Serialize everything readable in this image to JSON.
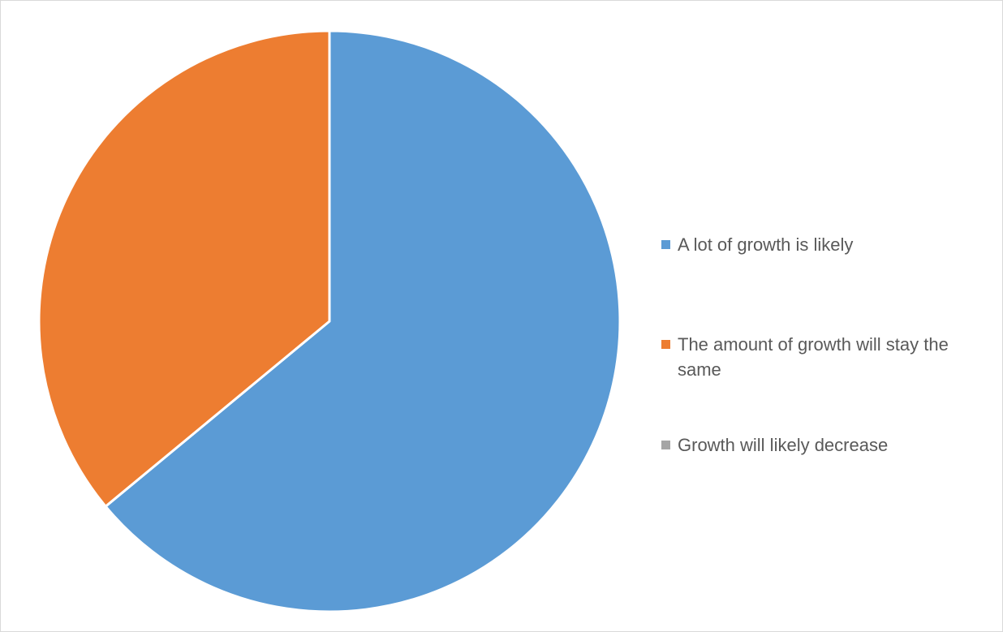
{
  "chart_data": {
    "type": "pie",
    "categories": [
      "A lot of growth is likely",
      "The amount of growth will stay the same",
      "Growth will likely decrease"
    ],
    "values": [
      64,
      36,
      0
    ],
    "colors": [
      "#5b9bd5",
      "#ed7d31",
      "#a5a5a5"
    ],
    "start_angle_deg": 0,
    "direction": "clockwise",
    "legend_position": "right"
  }
}
